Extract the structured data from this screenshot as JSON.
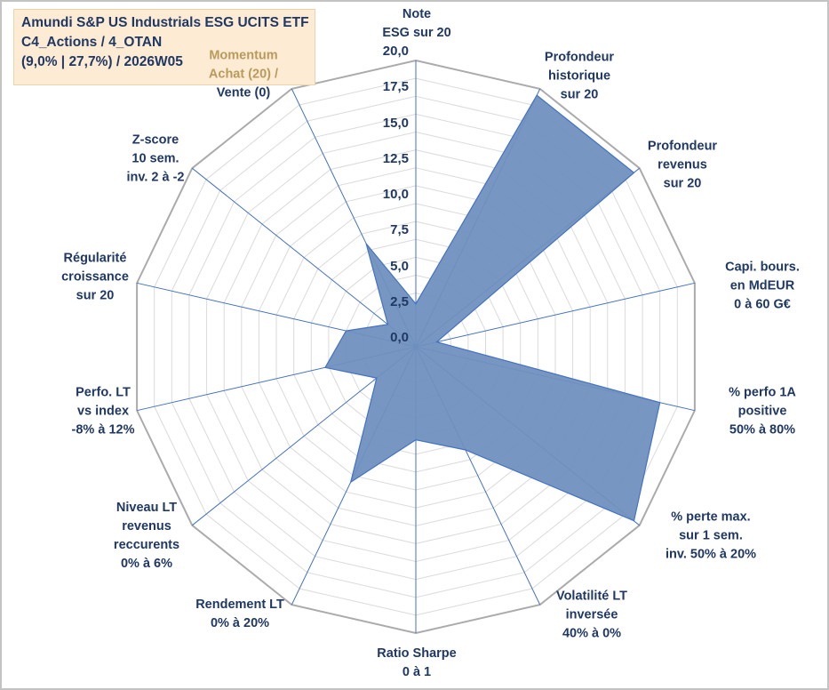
{
  "header": {
    "title_line1": "Amundi S&P US Industrials ESG UCITS ETF",
    "title_line2": "C4_Actions / 4_OTAN",
    "title_line3": "(9,0% | 27,7%) / 2026W05"
  },
  "colors": {
    "navy": "#1F3864",
    "gold": "#BA9A5C",
    "fill": "#7090BE",
    "fill_edge": "#4472C4",
    "grid": "#DADADA",
    "outer": "#ABABAB",
    "spoke": "#4472C4",
    "box_bg": "#FDEBD3",
    "box_border": "#E8D3AC"
  },
  "chart_data": {
    "type": "radar",
    "title": "Amundi S&P US Industrials ESG UCITS ETF C4_Actions / 4_OTAN (9,0% | 27,7%) / 2026W05",
    "min": 0,
    "max": 20,
    "tick_step": 2.5,
    "ring_step": 1.25,
    "ticks": [
      "0,0",
      "2,5",
      "5,0",
      "7,5",
      "10,0",
      "12,5",
      "15,0",
      "17,5",
      "20,0"
    ],
    "legend_position": "none",
    "grid": true,
    "axes": [
      {
        "label": "Note ESG sur 20",
        "lines": [
          "Note",
          "ESG sur 20"
        ],
        "value": 3
      },
      {
        "label": "Profondeur historique sur 20",
        "lines": [
          "Profondeur",
          "historique",
          "sur 20"
        ],
        "value": 19.5
      },
      {
        "label": "Profondeur revenus sur 20",
        "lines": [
          "Profondeur",
          "revenus",
          "sur 20"
        ],
        "value": 19.5
      },
      {
        "label": "Capi. bours. en MdEUR 0 à 60 G€",
        "lines": [
          "Capi. bours.",
          "en MdEUR",
          "0 à 60 G€"
        ],
        "value": 1.5
      },
      {
        "label": "% perfo 1A positive 50% à 80%",
        "lines": [
          "% perfo 1A",
          "positive",
          "50% à 80%"
        ],
        "value": 17.5
      },
      {
        "label": "% perte max. sur 1 sem. inv. 50% à 20%",
        "lines": [
          "% perte max.",
          "sur 1 sem.",
          "inv. 50% à 20%"
        ],
        "value": 19.5
      },
      {
        "label": "Volatilité LT inversée 40% à 0%",
        "lines": [
          "Volatilité LT",
          "inversée",
          "40% à 0%"
        ],
        "value": 8
      },
      {
        "label": "Ratio Sharpe 0 à 1",
        "lines": [
          "Ratio Sharpe",
          "0 à 1"
        ],
        "value": 6.5
      },
      {
        "label": "Rendement LT 0% à 20%",
        "lines": [
          "Rendement LT",
          "0% à 20%"
        ],
        "value": 10.5
      },
      {
        "label": "Niveau LT revenus reccurents 0% à 6%",
        "lines": [
          "Niveau LT",
          "revenus",
          "reccurents",
          "0% à 6%"
        ],
        "value": 3.5
      },
      {
        "label": "Perfo. LT vs index -8% à 12%",
        "lines": [
          "Perfo. LT",
          "vs index",
          "-8% à 12%"
        ],
        "value": 6.5
      },
      {
        "label": "Régularité croissance sur 20",
        "lines": [
          "Régularité",
          "croissance",
          "sur 20"
        ],
        "value": 5
      },
      {
        "label": "Z-score 10 sem. inv. 2 à -2",
        "lines": [
          "Z-score",
          "10 sem.",
          "inv. 2 à -2"
        ],
        "value": 2.5
      },
      {
        "label": "Momentum Achat (20) / Vente (0)",
        "lines": [
          "Momentum",
          "Achat (20) /",
          "Vente (0)"
        ],
        "value": 8,
        "highlight": true,
        "highlight_lines": 2
      }
    ]
  }
}
